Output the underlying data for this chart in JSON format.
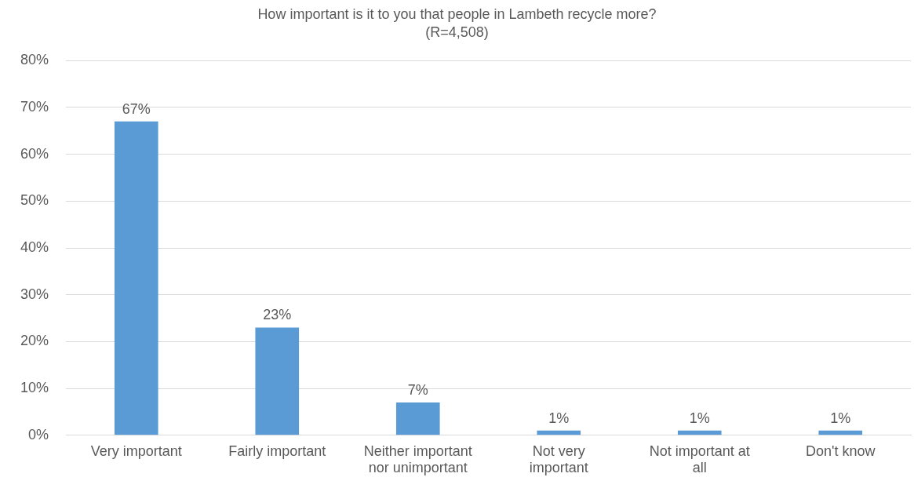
{
  "chart_data": {
    "type": "bar",
    "title": "How important is it to you that people in Lambeth recycle more?",
    "subtitle": "(R=4,508)",
    "categories": [
      "Very important",
      "Fairly important",
      "Neither important nor unimportant",
      "Not very important",
      "Not important at all",
      "Don't know"
    ],
    "values": [
      67,
      23,
      7,
      1,
      1,
      1
    ],
    "value_labels": [
      "67%",
      "23%",
      "7%",
      "1%",
      "1%",
      "1%"
    ],
    "color": "#5b9bd5",
    "ylim": [
      0,
      80
    ],
    "yticks": [
      {
        "value": 0,
        "label": "0%"
      },
      {
        "value": 10,
        "label": "10%"
      },
      {
        "value": 20,
        "label": "20%"
      },
      {
        "value": 30,
        "label": "30%"
      },
      {
        "value": 40,
        "label": "40%"
      },
      {
        "value": 50,
        "label": "50%"
      },
      {
        "value": 60,
        "label": "60%"
      },
      {
        "value": 70,
        "label": "70%"
      },
      {
        "value": 80,
        "label": "80%"
      }
    ],
    "grid": "y",
    "legend": false
  }
}
